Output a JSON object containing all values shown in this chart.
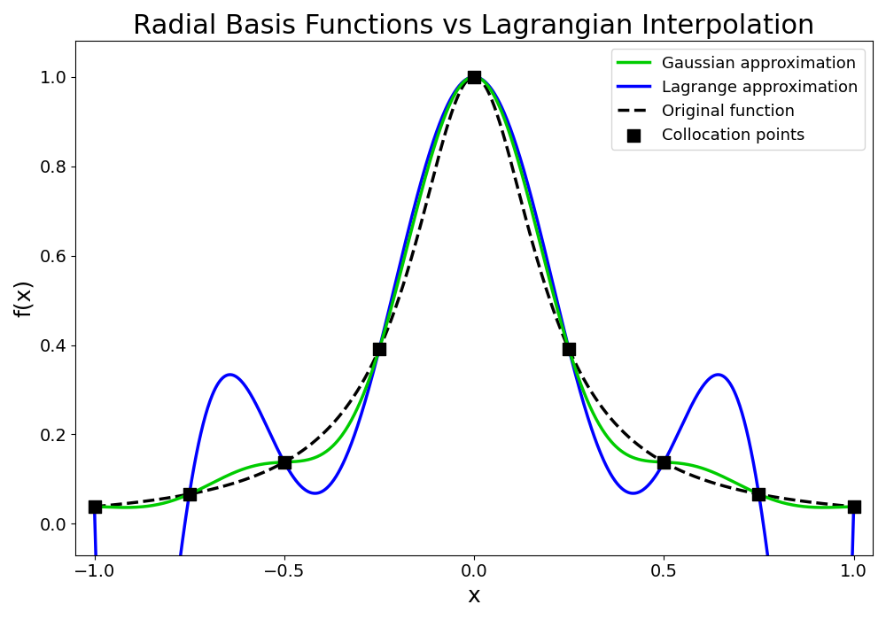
{
  "title": "Radial Basis Functions vs Lagrangian Interpolation",
  "xlabel": "x",
  "ylabel": "f(x)",
  "xlim": [
    -1.05,
    1.05
  ],
  "ylim": [
    -0.07,
    1.08
  ],
  "legend_labels": [
    "Gaussian approximation",
    "Lagrange approximation",
    "Original function",
    "Collocation points"
  ],
  "gaussian_color": "#00CC00",
  "lagrange_color": "#0000FF",
  "original_color": "#000000",
  "collocation_color": "#000000",
  "title_fontsize": 22,
  "axis_label_fontsize": 18,
  "tick_fontsize": 14,
  "legend_fontsize": 13,
  "collocation_x": [
    -1.0,
    -0.75,
    -0.5,
    -0.25,
    0.0,
    0.25,
    0.5,
    0.75,
    1.0
  ],
  "rbf_epsilon": 3.5,
  "runge_alpha": 25.0
}
